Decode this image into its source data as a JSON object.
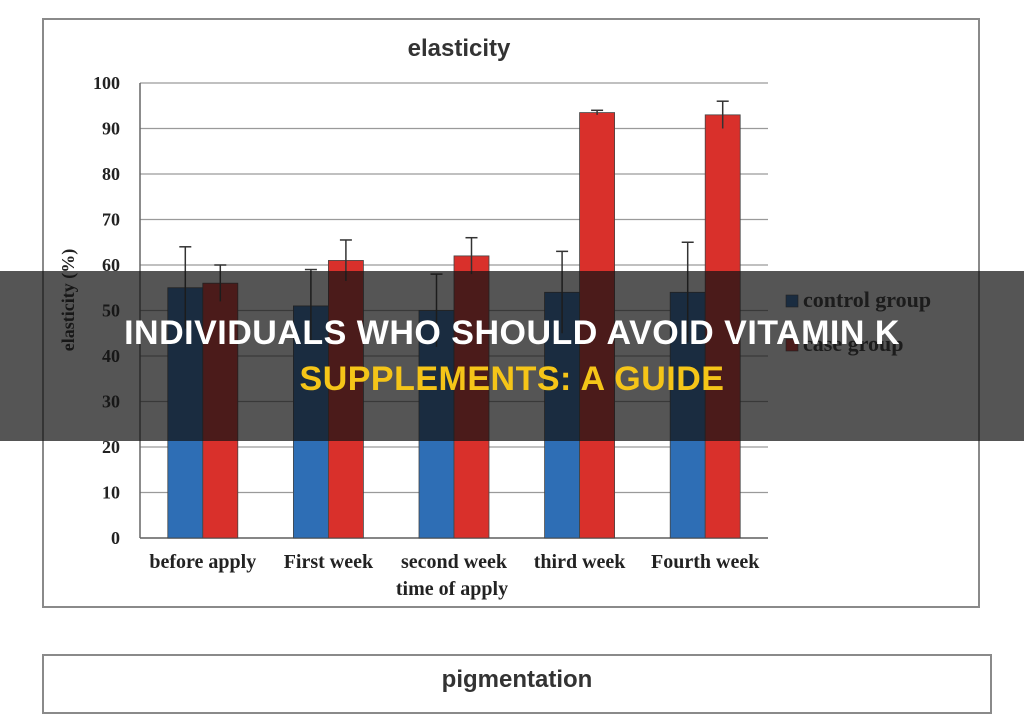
{
  "chart_data": {
    "type": "bar",
    "title": "elasticity",
    "xlabel": "time of apply",
    "ylabel": "elasticity (%)",
    "ylim": [
      0,
      100
    ],
    "yticks": [
      0,
      10,
      20,
      30,
      40,
      50,
      60,
      70,
      80,
      90,
      100
    ],
    "categories": [
      "before apply",
      "First week",
      "second week",
      "third week",
      "Fourth week"
    ],
    "series": [
      {
        "name": "control group",
        "color": "#2e6eb5",
        "values": [
          55,
          51,
          50,
          54,
          54
        ],
        "errors": [
          9,
          8,
          8,
          9,
          11
        ]
      },
      {
        "name": "case group",
        "color": "#d9302b",
        "values": [
          56,
          61,
          62,
          93.5,
          93
        ],
        "errors": [
          4,
          4.5,
          4,
          0.5,
          3
        ]
      }
    ],
    "legend_position": "right",
    "grid": true
  },
  "second_chart": {
    "title_partial": "pigmentation"
  },
  "banner": {
    "line1": "INDIVIDUALS WHO SHOULD AVOID VITAMIN K",
    "line2": "SUPPLEMENTS: A GUIDE",
    "background": "rgba(20,20,20,0.72)",
    "line1_color": "#ffffff",
    "line2_color": "#f5c518"
  }
}
